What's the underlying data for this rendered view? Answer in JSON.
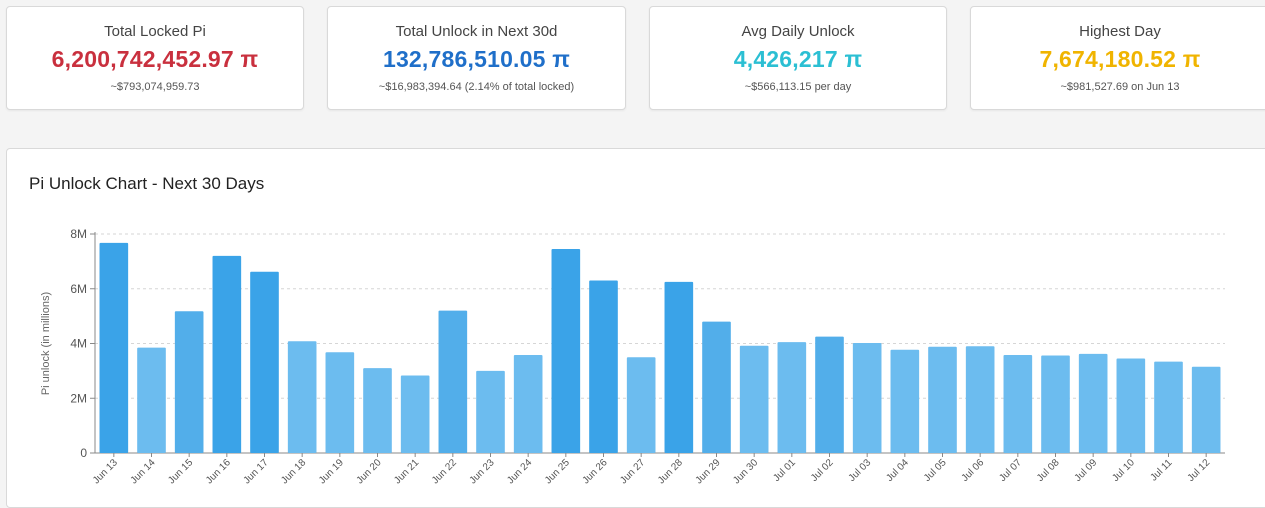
{
  "colors": {
    "locked": "#c9303e",
    "unlock_total": "#1f6fc9",
    "avg": "#2bbfd3",
    "highest": "#f0b400",
    "bar_dark": "#3aa3e8",
    "bar_mid": "#52aeea",
    "bar_light": "#6cbcef"
  },
  "stats": [
    {
      "label": "Total Locked Pi",
      "value": "6,200,742,452.97 π",
      "sub": "~$793,074,959.73",
      "color_key": "locked"
    },
    {
      "label": "Total Unlock in Next 30d",
      "value": "132,786,510.05 π",
      "sub": "~$16,983,394.64 (2.14% of total locked)",
      "color_key": "unlock_total"
    },
    {
      "label": "Avg Daily Unlock",
      "value": "4,426,217 π",
      "sub": "~$566,113.15 per day",
      "color_key": "avg"
    },
    {
      "label": "Highest Day",
      "value": "7,674,180.52 π",
      "sub": "~$981,527.69 on Jun 13",
      "color_key": "highest"
    }
  ],
  "chart_title": "Pi Unlock Chart - Next 30 Days",
  "chart_data": {
    "type": "bar",
    "title": "Pi Unlock Chart - Next 30 Days",
    "xlabel": "",
    "ylabel": "Pi unlock (in millions)",
    "ylim": [
      0,
      8000000
    ],
    "yticks": [
      0,
      2000000,
      4000000,
      6000000,
      8000000
    ],
    "ytick_labels": [
      "0",
      "2M",
      "4M",
      "6M",
      "8M"
    ],
    "grid": true,
    "categories": [
      "Jun 13",
      "Jun 14",
      "Jun 15",
      "Jun 16",
      "Jun 17",
      "Jun 18",
      "Jun 19",
      "Jun 20",
      "Jun 21",
      "Jun 22",
      "Jun 23",
      "Jun 24",
      "Jun 25",
      "Jun 26",
      "Jun 27",
      "Jun 28",
      "Jun 29",
      "Jun 30",
      "Jul 01",
      "Jul 02",
      "Jul 03",
      "Jul 04",
      "Jul 05",
      "Jul 06",
      "Jul 07",
      "Jul 08",
      "Jul 09",
      "Jul 10",
      "Jul 11",
      "Jul 12"
    ],
    "values": [
      7674180.52,
      3850000,
      5180000,
      7200000,
      6620000,
      4080000,
      3680000,
      3100000,
      2830000,
      5200000,
      3000000,
      3580000,
      7450000,
      6300000,
      3500000,
      6250000,
      4800000,
      3920000,
      4050000,
      4250000,
      4020000,
      3770000,
      3880000,
      3900000,
      3580000,
      3560000,
      3620000,
      3450000,
      3340000,
      3150000
    ]
  }
}
